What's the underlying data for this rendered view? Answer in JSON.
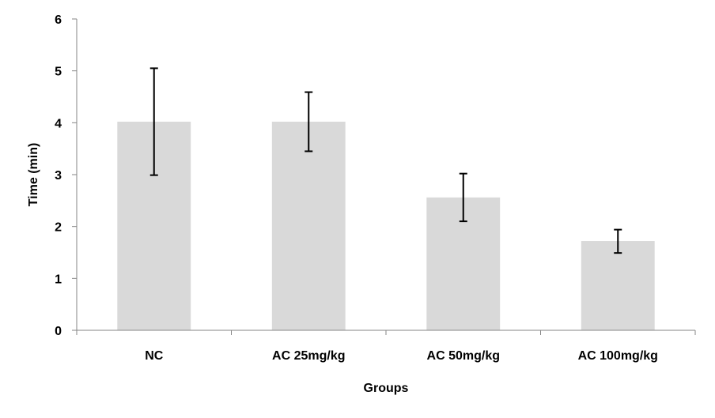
{
  "chart_data": {
    "type": "bar",
    "title": "",
    "xlabel": "Groups",
    "ylabel": "Time (min)",
    "categories": [
      "NC",
      "AC 25mg/kg",
      "AC 50mg/kg",
      "AC 100mg/kg"
    ],
    "values": [
      4.02,
      4.02,
      2.56,
      1.72
    ],
    "error_bars": [
      {
        "low": 2.99,
        "high": 5.05
      },
      {
        "low": 3.45,
        "high": 4.59
      },
      {
        "low": 2.1,
        "high": 3.02
      },
      {
        "low": 1.49,
        "high": 1.94
      }
    ],
    "ylim": [
      0,
      6
    ],
    "yticks": [
      0,
      1,
      2,
      3,
      4,
      5,
      6
    ],
    "grid": false,
    "legend": "none",
    "colors": {
      "bar": "#d9d9d9",
      "axis": "#868686",
      "error_bar": "#000000"
    }
  }
}
